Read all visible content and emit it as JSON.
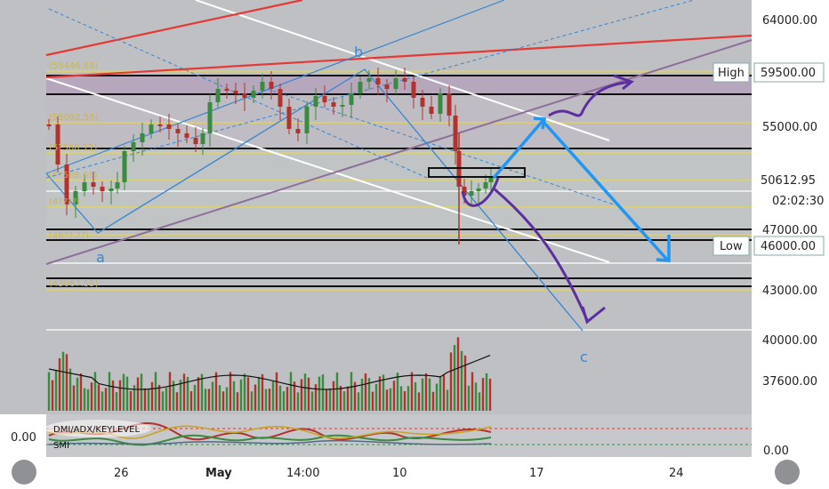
{
  "chart_data": {
    "type": "candlestick",
    "title": "",
    "price_axis": {
      "ticks": [
        "64000.00",
        "55000.00",
        "47000.00",
        "43000.00",
        "40000.00",
        "37600.00"
      ],
      "last_price": "50612.95",
      "countdown": "02:02:30",
      "high_label": "High",
      "high_value": "59500.00",
      "low_label": "Low",
      "low_value": "46000.00"
    },
    "time_axis": {
      "ticks": [
        "26",
        "May",
        "14:00",
        "10",
        "17",
        "24"
      ]
    },
    "fib_labels": [
      "(59446.68)",
      "(55092.56)",
      "(5?560.11)",
      "(5?588.65)",
      "(4????)",
      "(46??.??)",
      "(43067.55)"
    ],
    "wave_labels": [
      "a",
      "b",
      "c"
    ],
    "volume_panel": {
      "description": "volume histogram"
    },
    "indicator_panel": {
      "labels": [
        "DMI/ADX/KEYLEVEL",
        "SMI"
      ],
      "y_tick_left": "0.00",
      "y_tick_right": "0.00"
    },
    "colors": {
      "background": "#bfc0c3",
      "up_candle": "#3a8a3f",
      "down_candle": "#b2322d",
      "fib_line": "#e6d54d",
      "key_level": "#111111",
      "projection": "#2196f3",
      "projection_alt": "#5b2f9e",
      "trend_red": "#e53935",
      "zone": "#b39dbb"
    }
  }
}
